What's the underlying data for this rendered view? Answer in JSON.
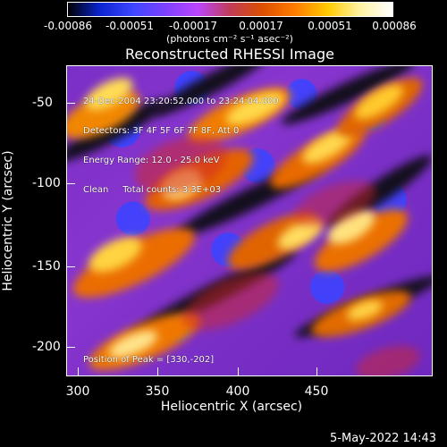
{
  "window": {
    "title": "Reconstructed RHESSI Image"
  },
  "colorbar": {
    "labels": [
      "-0.00086",
      "-0.00051",
      "-0.00017",
      "0.00017",
      "0.00051",
      "0.00086"
    ],
    "units": "(photons cm⁻² s⁻¹ asec⁻²)",
    "gradient_colors": [
      "#000000",
      "#0b24d4",
      "#3d46ff",
      "#7d41ff",
      "#ba45ff",
      "#c13c56",
      "#db4f00",
      "#ff7c00",
      "#ffca00",
      "#fff2a3",
      "#ffffff"
    ]
  },
  "plot": {
    "info_lines": [
      "24-Dec-2004 23:20:52.000 to 23:24:04.000",
      "Detectors: 3F 4F 5F 6F 7F 8F, Att 0",
      "Energy Range: 12.0 - 25.0 keV",
      "Clean     Total counts: 3.3E+03"
    ],
    "peak_text": "Position of Peak = [330,-202]"
  },
  "axes": {
    "x_label": "Heliocentric X (arcsec)",
    "y_label": "Heliocentric Y (arcsec)",
    "x_ticks": [
      "300",
      "350",
      "400",
      "450"
    ],
    "y_ticks": [
      "-50",
      "-100",
      "-150",
      "-200"
    ]
  },
  "footer": {
    "date": "5-May-2022 14:43"
  },
  "colors": {
    "background": "#000000",
    "foreground": "#ffffff",
    "purple": "#7d2fc7",
    "blue": "#3c43ff",
    "black": "#111111",
    "red": "#d93400",
    "orange": "#ff8f00",
    "yellow": "#ffd000",
    "white": "#fff8d8"
  }
}
